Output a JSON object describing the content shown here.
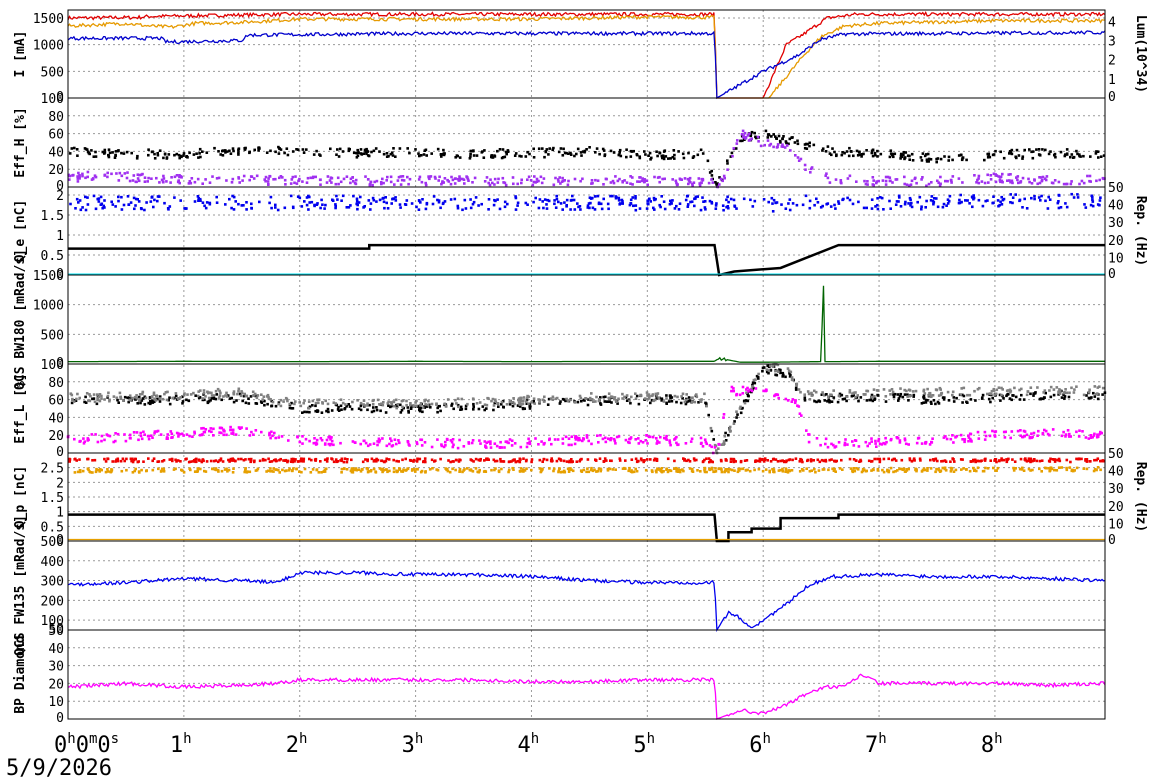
{
  "date": "5/9/2026",
  "x_axis": {
    "unit": "hours",
    "range": [
      0,
      8.95
    ],
    "ticks": [
      {
        "v": 0,
        "label": "0",
        "sup": "h",
        "extra": "0",
        "sup2": "m",
        "extra2": "0",
        "sup3": "s"
      },
      {
        "v": 1,
        "label": "1",
        "sup": "h"
      },
      {
        "v": 2,
        "label": "2",
        "sup": "h"
      },
      {
        "v": 3,
        "label": "3",
        "sup": "h"
      },
      {
        "v": 4,
        "label": "4",
        "sup": "h"
      },
      {
        "v": 5,
        "label": "5",
        "sup": "h"
      },
      {
        "v": 6,
        "label": "6",
        "sup": "h"
      },
      {
        "v": 7,
        "label": "7",
        "sup": "h"
      },
      {
        "v": 8,
        "label": "8",
        "sup": "h"
      }
    ]
  },
  "chart_data": [
    {
      "panel": "beam-current",
      "type": "line",
      "ylabel": "I [mA]",
      "ylim": [
        0,
        1650
      ],
      "yticks": [
        0,
        500,
        1000,
        1500
      ],
      "ylabel_right": "Lum(10^34)",
      "ylim_right": [
        0,
        4.6
      ],
      "yticks_right": [
        0,
        1,
        2,
        3,
        4
      ],
      "series": [
        {
          "color": "#e00000",
          "axis": "left",
          "x": [
            0,
            0.6,
            0.7,
            1.9,
            5.58,
            5.6,
            5.62,
            5.75,
            5.85,
            6.0,
            6.2,
            6.35,
            6.55,
            6.8,
            8.95
          ],
          "y": [
            1500,
            1510,
            1530,
            1570,
            1570,
            0,
            0,
            0,
            0,
            0,
            1000,
            1200,
            1500,
            1570,
            1570
          ]
        },
        {
          "color": "#e69a00",
          "axis": "left",
          "x": [
            0,
            0.5,
            0.7,
            0.9,
            1.1,
            1.5,
            2.0,
            3.0,
            4.0,
            5.0,
            5.58,
            5.6,
            6.05,
            6.2,
            6.35,
            6.5,
            6.7,
            7.0,
            8.0,
            8.95
          ],
          "y": [
            1350,
            1400,
            1350,
            1330,
            1400,
            1420,
            1480,
            1480,
            1480,
            1520,
            1510,
            0,
            0,
            400,
            800,
            1150,
            1350,
            1400,
            1450,
            1450
          ]
        },
        {
          "color": "#0000cc",
          "axis": "left",
          "x": [
            0,
            0.8,
            0.85,
            1.5,
            1.55,
            3.0,
            5.58,
            5.6,
            6.0,
            6.3,
            6.5,
            6.7,
            8.95
          ],
          "y": [
            1120,
            1120,
            1050,
            1080,
            1180,
            1210,
            1210,
            0,
            500,
            800,
            1100,
            1200,
            1230
          ]
        }
      ]
    },
    {
      "panel": "efficiency-her",
      "type": "scatter",
      "ylabel": "Eff_H [%]",
      "ylim": [
        0,
        100
      ],
      "yticks": [
        0,
        20,
        40,
        60,
        80,
        100
      ],
      "series": [
        {
          "color": "#000000",
          "x": [
            0,
            0.5,
            1,
            1.5,
            2,
            2.5,
            3,
            3.5,
            4,
            4.5,
            5,
            5.5,
            5.6,
            5.8,
            6.0,
            6.3,
            6.6,
            7.0,
            7.5,
            8.0,
            8.5,
            8.95
          ],
          "y": [
            40,
            37,
            37,
            40,
            41,
            38,
            39,
            37,
            38,
            40,
            36,
            37,
            0,
            55,
            60,
            50,
            40,
            37,
            32,
            36,
            38,
            37
          ]
        },
        {
          "color": "#a030f0",
          "x": [
            0,
            0.3,
            0.6,
            1,
            1.5,
            2,
            3,
            4,
            5,
            5.55,
            5.6,
            5.7,
            5.8,
            6.0,
            6.2,
            6.4,
            6.6,
            7.0,
            7.5,
            8.0,
            8.5,
            8.95
          ],
          "y": [
            10,
            14,
            10,
            8,
            8,
            7,
            7,
            7,
            7,
            6,
            0,
            20,
            60,
            50,
            45,
            20,
            8,
            7,
            6,
            10,
            8,
            8
          ]
        }
      ]
    },
    {
      "panel": "bunch-charge-e",
      "type": "scatter",
      "ylabel": "Q_e [nC]",
      "ylim": [
        0,
        2.2
      ],
      "yticks": [
        0,
        0.5,
        1,
        1.5,
        2
      ],
      "ylabel_right": "Rep. (Hz)",
      "ylim_right": [
        0,
        50
      ],
      "yticks_right": [
        0,
        10,
        20,
        30,
        40,
        50
      ],
      "series": [
        {
          "color": "#0000ee",
          "kind": "band",
          "x": [
            0,
            5.55,
            5.65,
            6.0,
            6.2,
            8.95
          ],
          "y": [
            1.8,
            1.8,
            1.8,
            1.75,
            1.8,
            1.85
          ],
          "spread": 0.18
        },
        {
          "color": "#000000",
          "kind": "step",
          "axis": "right",
          "x": [
            0,
            2.6,
            2.6,
            5.58,
            5.62,
            5.75,
            5.75,
            6.15,
            6.15,
            6.65,
            6.65,
            8.95
          ],
          "y": [
            15,
            15,
            17,
            17,
            0,
            2,
            2,
            4,
            4,
            17,
            17,
            17
          ]
        },
        {
          "color": "#00e0f0",
          "kind": "line",
          "x": [
            0,
            8.95
          ],
          "y": [
            0.02,
            0.02
          ]
        }
      ]
    },
    {
      "panel": "qcs-bw180",
      "type": "line",
      "ylabel": "QCS BW180 [mRad/s]",
      "ylim": [
        0,
        1500
      ],
      "yticks": [
        0,
        500,
        1000,
        1500
      ],
      "series": [
        {
          "color": "#006400",
          "x": [
            0,
            1,
            2,
            3,
            4,
            5,
            5.58,
            5.62,
            5.8,
            6.0,
            6.5,
            6.52,
            6.53,
            6.55,
            7,
            8,
            8.95
          ],
          "y": [
            40,
            45,
            40,
            45,
            40,
            45,
            45,
            100,
            30,
            30,
            40,
            1400,
            40,
            40,
            45,
            45,
            45
          ]
        }
      ]
    },
    {
      "panel": "efficiency-ler",
      "type": "scatter",
      "ylabel": "Eff_L [%]",
      "ylim": [
        0,
        100
      ],
      "yticks": [
        0,
        20,
        40,
        60,
        80,
        100
      ],
      "series": [
        {
          "color": "#000000",
          "x": [
            0,
            0.5,
            1,
            1.5,
            1.8,
            2,
            2.5,
            3,
            3.5,
            4,
            4.5,
            5,
            5.5,
            5.6,
            6.0,
            6.2,
            6.35,
            6.5,
            7,
            7.5,
            8,
            8.5,
            8.95
          ],
          "y": [
            60,
            58,
            60,
            62,
            55,
            50,
            50,
            50,
            52,
            55,
            58,
            60,
            60,
            0,
            95,
            90,
            60,
            62,
            62,
            60,
            62,
            65,
            65
          ]
        },
        {
          "color": "#808080",
          "x": [
            0,
            0.5,
            1,
            1.5,
            1.8,
            2,
            2.5,
            3,
            3.5,
            4,
            4.5,
            5,
            5.5,
            5.6,
            6.0,
            6.2,
            6.35,
            6.5,
            7,
            7.5,
            8,
            8.5,
            8.95
          ],
          "y": [
            62,
            63,
            65,
            68,
            58,
            55,
            55,
            55,
            57,
            60,
            62,
            63,
            62,
            0,
            98,
            95,
            65,
            65,
            68,
            68,
            70,
            70,
            70
          ]
        },
        {
          "color": "#ff00ff",
          "x": [
            0,
            0.5,
            1,
            1.5,
            2,
            2.5,
            3,
            3.5,
            4,
            4.5,
            5,
            5.5,
            5.6,
            5.7,
            6.0,
            6.3,
            6.4,
            6.6,
            7,
            7.5,
            8,
            8.5,
            8.95
          ],
          "y": [
            15,
            18,
            22,
            25,
            15,
            12,
            12,
            10,
            12,
            15,
            15,
            12,
            0,
            70,
            70,
            55,
            15,
            10,
            12,
            15,
            20,
            22,
            20
          ]
        }
      ]
    },
    {
      "panel": "bunch-charge-p",
      "type": "scatter",
      "ylabel": "Q_p [nC]",
      "ylim": [
        0,
        3.0
      ],
      "yticks": [
        0,
        0.5,
        1,
        1.5,
        2,
        2.5
      ],
      "ylabel_right": "Rep. (Hz)",
      "ylim_right": [
        0,
        50
      ],
      "yticks_right": [
        0,
        10,
        20,
        30,
        40,
        50
      ],
      "series": [
        {
          "color": "#ee0000",
          "kind": "band",
          "x": [
            0,
            5.55,
            5.7,
            6.0,
            8.95
          ],
          "y": [
            2.75,
            2.75,
            2.75,
            2.75,
            2.75
          ],
          "spread": 0.06
        },
        {
          "color": "#e6a000",
          "kind": "band",
          "x": [
            0,
            5.55,
            5.7,
            6.0,
            8.95
          ],
          "y": [
            2.4,
            2.42,
            2.4,
            2.4,
            2.45
          ],
          "spread": 0.07
        },
        {
          "color": "#000000",
          "kind": "step",
          "axis": "right",
          "x": [
            0,
            5.58,
            5.6,
            5.7,
            5.7,
            5.9,
            5.9,
            6.15,
            6.15,
            6.65,
            6.65,
            8.95
          ],
          "y": [
            15,
            15,
            0,
            0,
            5,
            5,
            7,
            7,
            13,
            13,
            15,
            15
          ]
        },
        {
          "color": "#e6a000",
          "kind": "line",
          "x": [
            0,
            8.95
          ],
          "y": [
            0.05,
            0.05
          ]
        }
      ]
    },
    {
      "panel": "qcs-fw135",
      "type": "line",
      "ylabel": "QCS FW135 [mRad/s]",
      "ylim": [
        50,
        500
      ],
      "yticks": [
        50,
        100,
        200,
        300,
        400,
        500
      ],
      "series": [
        {
          "color": "#0000ee",
          "x": [
            0,
            0.5,
            1,
            1.5,
            1.8,
            2,
            2.5,
            3,
            3.5,
            4,
            4.5,
            5,
            5.58,
            5.6,
            5.7,
            5.8,
            5.9,
            6.0,
            6.2,
            6.4,
            6.6,
            7,
            7.5,
            8,
            8.5,
            8.95
          ],
          "y": [
            280,
            290,
            310,
            300,
            290,
            340,
            340,
            330,
            330,
            320,
            300,
            290,
            290,
            50,
            140,
            110,
            60,
            100,
            180,
            280,
            320,
            330,
            320,
            320,
            310,
            300
          ]
        }
      ]
    },
    {
      "panel": "bp-diamond",
      "type": "line",
      "ylabel": "BP Diamond",
      "ylim": [
        0,
        50
      ],
      "yticks": [
        0,
        10,
        20,
        30,
        40,
        50
      ],
      "series": [
        {
          "color": "#ff00ff",
          "x": [
            0,
            0.5,
            1,
            1.5,
            1.8,
            2,
            2.5,
            3,
            3.5,
            4,
            4.5,
            5,
            5.58,
            5.6,
            5.8,
            6.0,
            6.2,
            6.4,
            6.55,
            6.7,
            6.85,
            7,
            7.5,
            8,
            8.5,
            8.95
          ],
          "y": [
            18,
            20,
            18,
            19,
            20,
            22,
            22,
            22,
            22,
            21,
            21,
            22,
            22,
            0,
            5,
            3,
            8,
            15,
            18,
            18,
            25,
            20,
            20,
            20,
            19,
            20
          ]
        }
      ]
    }
  ]
}
